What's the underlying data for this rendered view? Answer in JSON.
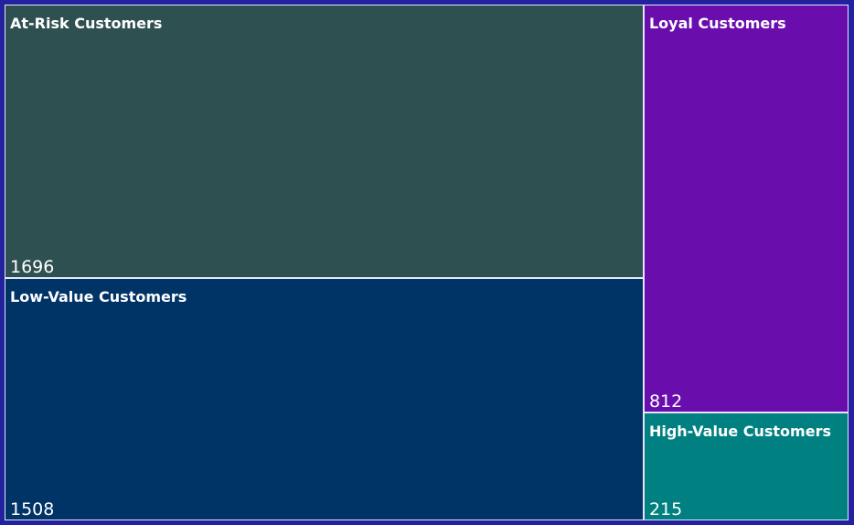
{
  "chart_data": {
    "type": "treemap",
    "items": [
      {
        "label": "At-Risk Customers",
        "value": 1696,
        "color": "#2f5050"
      },
      {
        "label": "Low-Value Customers",
        "value": 1508,
        "color": "#003366"
      },
      {
        "label": "Loyal Customers",
        "value": 812,
        "color": "#6a0dad"
      },
      {
        "label": "High-Value Customers",
        "value": 215,
        "color": "#008080"
      }
    ],
    "background": "#22229e"
  }
}
